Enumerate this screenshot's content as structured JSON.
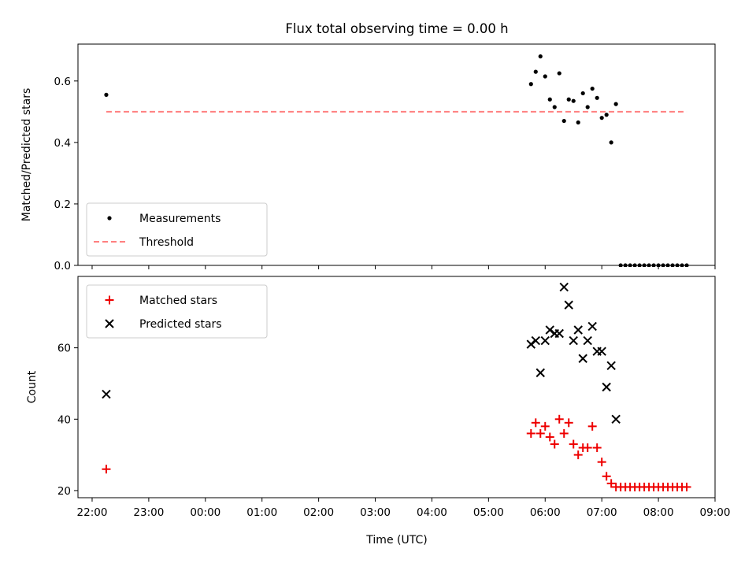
{
  "title": "Flux total observing time = 0.00 h",
  "xlabel": "Time (UTC)",
  "colors": {
    "measurement": "#000000",
    "threshold": "#ff8080",
    "matched": "#ee0000",
    "predicted": "#000000"
  },
  "chart_data": [
    {
      "type": "scatter",
      "ylabel": "Matched/Predicted stars",
      "xlim": [
        "21:45",
        "09:00"
      ],
      "ylim": [
        0,
        0.72
      ],
      "yticks": [
        "0.0",
        "0.2",
        "0.4",
        "0.6"
      ],
      "grid": false,
      "legend": "lower-left",
      "series": [
        {
          "name": "Measurements",
          "points": [
            [
              "22:15",
              0.555
            ],
            [
              "05:45",
              0.59
            ],
            [
              "05:50",
              0.63
            ],
            [
              "05:55",
              0.68
            ],
            [
              "06:00",
              0.615
            ],
            [
              "06:05",
              0.54
            ],
            [
              "06:10",
              0.515
            ],
            [
              "06:15",
              0.625
            ],
            [
              "06:20",
              0.47
            ],
            [
              "06:25",
              0.54
            ],
            [
              "06:30",
              0.535
            ],
            [
              "06:35",
              0.465
            ],
            [
              "06:40",
              0.56
            ],
            [
              "06:45",
              0.515
            ],
            [
              "06:50",
              0.575
            ],
            [
              "06:55",
              0.545
            ],
            [
              "07:00",
              0.48
            ],
            [
              "07:05",
              0.49
            ],
            [
              "07:10",
              0.4
            ],
            [
              "07:15",
              0.525
            ],
            [
              "07:20",
              0.0
            ],
            [
              "07:25",
              0.0
            ],
            [
              "07:30",
              0.0
            ],
            [
              "07:35",
              0.0
            ],
            [
              "07:40",
              0.0
            ],
            [
              "07:45",
              0.0
            ],
            [
              "07:50",
              0.0
            ],
            [
              "07:55",
              0.0
            ],
            [
              "08:00",
              0.0
            ],
            [
              "08:05",
              0.0
            ],
            [
              "08:10",
              0.0
            ],
            [
              "08:15",
              0.0
            ],
            [
              "08:20",
              0.0
            ],
            [
              "08:25",
              0.0
            ],
            [
              "08:30",
              0.0
            ]
          ]
        },
        {
          "name": "Threshold",
          "line": true,
          "points": [
            [
              "22:15",
              0.5
            ],
            [
              "08:30",
              0.5
            ]
          ]
        }
      ]
    },
    {
      "type": "scatter",
      "ylabel": "Count",
      "xlim": [
        "21:45",
        "09:00"
      ],
      "ylim": [
        18,
        80
      ],
      "yticks": [
        "20",
        "40",
        "60"
      ],
      "xticks": [
        "22:00",
        "23:00",
        "00:00",
        "01:00",
        "02:00",
        "03:00",
        "04:00",
        "05:00",
        "06:00",
        "07:00",
        "08:00",
        "09:00"
      ],
      "grid": false,
      "legend": "upper-left",
      "series": [
        {
          "name": "Matched stars",
          "points": [
            [
              "22:15",
              26
            ],
            [
              "05:45",
              36
            ],
            [
              "05:50",
              39
            ],
            [
              "05:55",
              36
            ],
            [
              "06:00",
              38
            ],
            [
              "06:05",
              35
            ],
            [
              "06:10",
              33
            ],
            [
              "06:15",
              40
            ],
            [
              "06:20",
              36
            ],
            [
              "06:25",
              39
            ],
            [
              "06:30",
              33
            ],
            [
              "06:35",
              30
            ],
            [
              "06:40",
              32
            ],
            [
              "06:45",
              32
            ],
            [
              "06:50",
              38
            ],
            [
              "06:55",
              32
            ],
            [
              "07:00",
              28
            ],
            [
              "07:05",
              24
            ],
            [
              "07:10",
              22
            ],
            [
              "07:15",
              21
            ],
            [
              "07:20",
              21
            ],
            [
              "07:25",
              21
            ],
            [
              "07:30",
              21
            ],
            [
              "07:35",
              21
            ],
            [
              "07:40",
              21
            ],
            [
              "07:45",
              21
            ],
            [
              "07:50",
              21
            ],
            [
              "07:55",
              21
            ],
            [
              "08:00",
              21
            ],
            [
              "08:05",
              21
            ],
            [
              "08:10",
              21
            ],
            [
              "08:15",
              21
            ],
            [
              "08:20",
              21
            ],
            [
              "08:25",
              21
            ],
            [
              "08:30",
              21
            ]
          ]
        },
        {
          "name": "Predicted stars",
          "points": [
            [
              "22:15",
              47
            ],
            [
              "05:45",
              61
            ],
            [
              "05:50",
              62
            ],
            [
              "05:55",
              53
            ],
            [
              "06:00",
              62
            ],
            [
              "06:05",
              65
            ],
            [
              "06:10",
              64
            ],
            [
              "06:15",
              64
            ],
            [
              "06:20",
              77
            ],
            [
              "06:25",
              72
            ],
            [
              "06:30",
              62
            ],
            [
              "06:35",
              65
            ],
            [
              "06:40",
              57
            ],
            [
              "06:45",
              62
            ],
            [
              "06:50",
              66
            ],
            [
              "06:55",
              59
            ],
            [
              "07:00",
              59
            ],
            [
              "07:05",
              49
            ],
            [
              "07:10",
              55
            ],
            [
              "07:15",
              40
            ]
          ]
        }
      ]
    }
  ]
}
